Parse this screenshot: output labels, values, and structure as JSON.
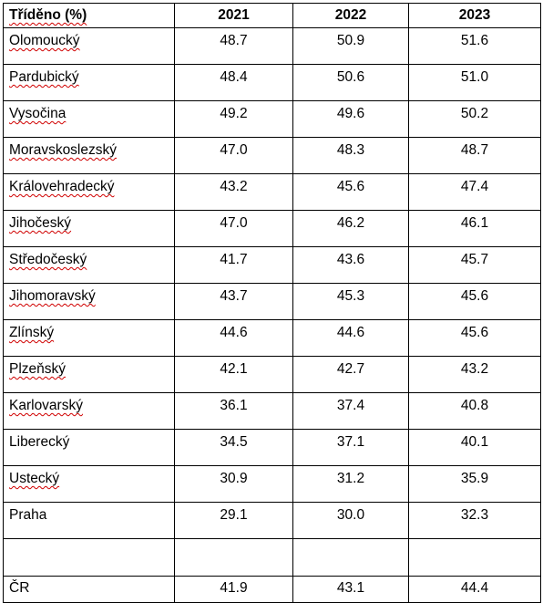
{
  "table": {
    "header": [
      "Tříděno (%)",
      "2021",
      "2022",
      "2023"
    ],
    "rows": [
      {
        "region": "Olomoucký",
        "v2021": "48.7",
        "v2022": "50.9",
        "v2023": "51.6",
        "spell": true
      },
      {
        "region": "Pardubický",
        "v2021": "48.4",
        "v2022": "50.6",
        "v2023": "51.0",
        "spell": true
      },
      {
        "region": "Vysočina",
        "v2021": "49.2",
        "v2022": "49.6",
        "v2023": "50.2",
        "spell": true
      },
      {
        "region": "Moravskoslezský",
        "v2021": "47.0",
        "v2022": "48.3",
        "v2023": "48.7",
        "spell": true
      },
      {
        "region": "Královehradecký",
        "v2021": "43.2",
        "v2022": "45.6",
        "v2023": "47.4",
        "spell": true
      },
      {
        "region": "Jihočeský",
        "v2021": "47.0",
        "v2022": "46.2",
        "v2023": "46.1",
        "spell": true
      },
      {
        "region": "Středočeský",
        "v2021": "41.7",
        "v2022": "43.6",
        "v2023": "45.7",
        "spell": true
      },
      {
        "region": "Jihomoravský",
        "v2021": "43.7",
        "v2022": "45.3",
        "v2023": "45.6",
        "spell": true
      },
      {
        "region": "Zlínský",
        "v2021": "44.6",
        "v2022": "44.6",
        "v2023": "45.6",
        "spell": true
      },
      {
        "region": "Plzeňský",
        "v2021": "42.1",
        "v2022": "42.7",
        "v2023": "43.2",
        "spell": true
      },
      {
        "region": "Karlovarský",
        "v2021": "36.1",
        "v2022": "37.4",
        "v2023": "40.8",
        "spell": true
      },
      {
        "region": "Liberecký",
        "v2021": "34.5",
        "v2022": "37.1",
        "v2023": "40.1",
        "spell": false
      },
      {
        "region": "Ustecký",
        "v2021": "30.9",
        "v2022": "31.2",
        "v2023": "35.9",
        "spell": true
      },
      {
        "region": "Praha",
        "v2021": "29.1",
        "v2022": "30.0",
        "v2023": "32.3",
        "spell": false
      }
    ],
    "total": {
      "region": "ČR",
      "v2021": "41.9",
      "v2022": "43.1",
      "v2023": "44.4"
    }
  }
}
